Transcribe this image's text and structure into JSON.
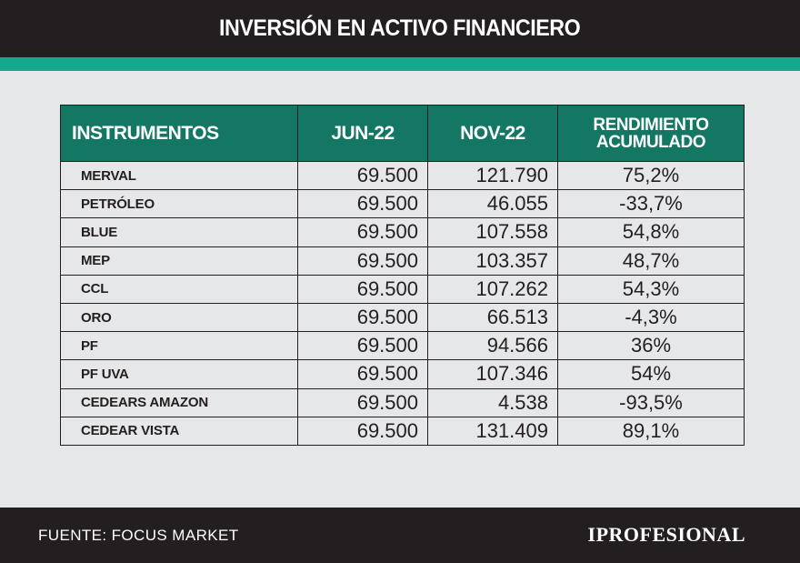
{
  "header": {
    "title": "INVERSIÓN EN ACTIVO FINANCIERO"
  },
  "chart_data": {
    "type": "table",
    "columns": [
      "INSTRUMENTOS",
      "JUN-22",
      "NOV-22",
      "RENDIMIENTO",
      "ACUMULADO"
    ],
    "rows": [
      {
        "instrument": "MERVAL",
        "jun22": "69.500",
        "nov22": "121.790",
        "rend": "75,2%"
      },
      {
        "instrument": "PETRÓLEO",
        "jun22": "69.500",
        "nov22": "46.055",
        "rend": "-33,7%"
      },
      {
        "instrument": "BLUE",
        "jun22": "69.500",
        "nov22": "107.558",
        "rend": "54,8%"
      },
      {
        "instrument": "MEP",
        "jun22": "69.500",
        "nov22": "103.357",
        "rend": "48,7%"
      },
      {
        "instrument": "CCL",
        "jun22": "69.500",
        "nov22": "107.262",
        "rend": "54,3%"
      },
      {
        "instrument": "ORO",
        "jun22": "69.500",
        "nov22": "66.513",
        "rend": "-4,3%"
      },
      {
        "instrument": "PF",
        "jun22": "69.500",
        "nov22": "94.566",
        "rend": "36%"
      },
      {
        "instrument": "PF UVA",
        "jun22": "69.500",
        "nov22": "107.346",
        "rend": "54%"
      },
      {
        "instrument": "CEDEARS AMAZON",
        "jun22": "69.500",
        "nov22": "4.538",
        "rend": "-93,5%"
      },
      {
        "instrument": "CEDEAR VISTA",
        "jun22": "69.500",
        "nov22": "131.409",
        "rend": "89,1%"
      }
    ]
  },
  "footer": {
    "source": "FUENTE: FOCUS MARKET",
    "brand": "IPROFESIONAL"
  },
  "colors": {
    "header_bg": "#231f20",
    "accent": "#14a88c",
    "table_header_bg": "#137764",
    "page_bg": "#e6e7e9"
  }
}
